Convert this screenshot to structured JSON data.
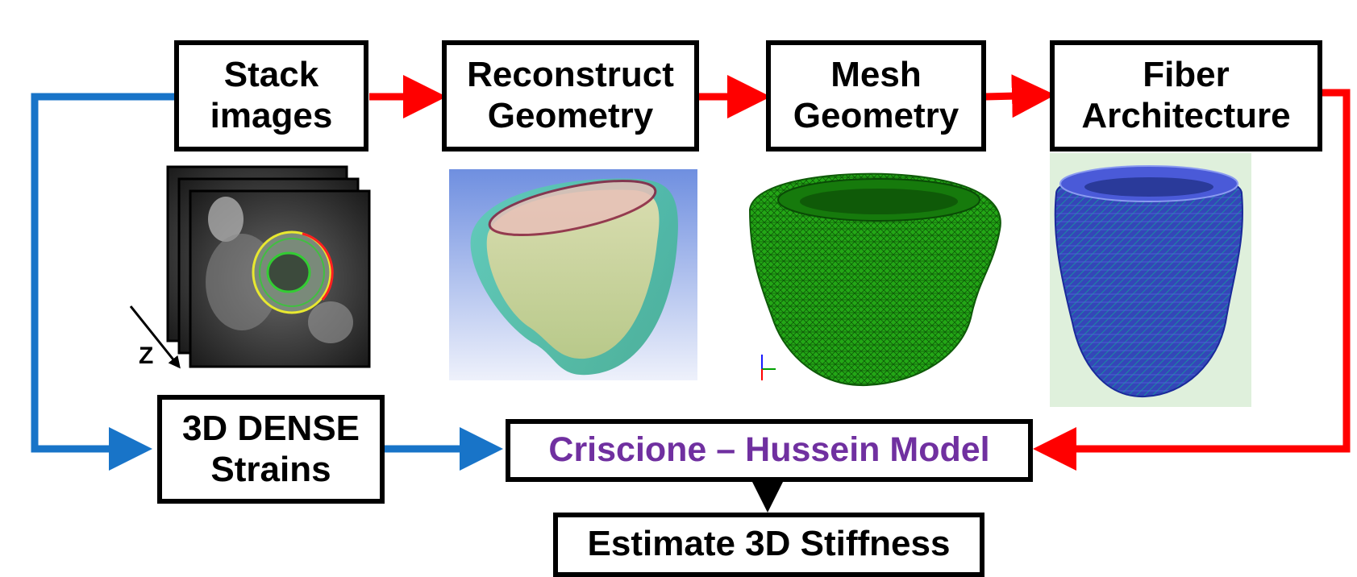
{
  "nodes": {
    "stack_images": {
      "line1": "Stack",
      "line2": "images"
    },
    "reconstruct_geometry": {
      "line1": "Reconstruct",
      "line2": "Geometry"
    },
    "mesh_geometry": {
      "line1": "Mesh",
      "line2": "Geometry"
    },
    "fiber_architecture": {
      "line1": "Fiber",
      "line2": "Architecture"
    },
    "dense_strains": {
      "line1": "3D DENSE",
      "line2": "Strains"
    },
    "model": {
      "label": "Criscione – Hussein Model"
    },
    "estimate": {
      "label": "Estimate 3D Stiffness"
    }
  },
  "image_labels": {
    "z_axis": "Z"
  },
  "colors": {
    "red_flow": "#ff0000",
    "blue_flow": "#1874c8",
    "model_text": "#7030a0",
    "mesh_green": "#1f9a12",
    "fiber_blue": "#2a3fcc"
  }
}
